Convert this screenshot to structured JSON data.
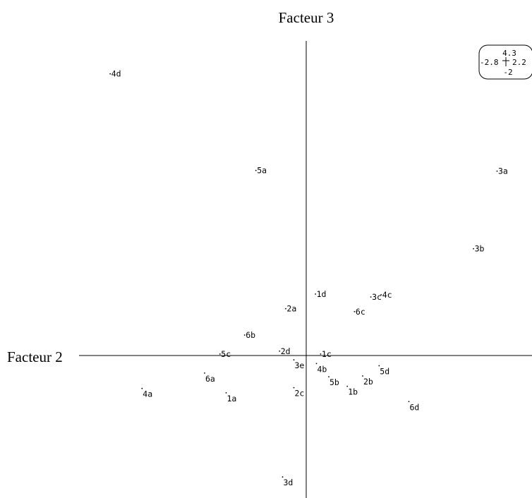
{
  "chart_data": {
    "type": "scatter",
    "xlabel": "Facteur 2",
    "ylabel": "Facteur 3",
    "xlim": [
      -2.8,
      2.2
    ],
    "ylim": [
      -2,
      4.3
    ],
    "grid": false,
    "scale_box": {
      "top": "4.3",
      "left": "-2.8",
      "right": "2.2",
      "bottom": "-2"
    },
    "points": [
      {
        "label": "4d",
        "x": -1.91,
        "y": 3.85,
        "label_side": "right"
      },
      {
        "label": "5a",
        "x": -0.49,
        "y": 2.53,
        "label_side": "right"
      },
      {
        "label": "3a",
        "x": 1.86,
        "y": 2.52,
        "label_side": "right"
      },
      {
        "label": "3b",
        "x": 1.63,
        "y": 1.46,
        "label_side": "right"
      },
      {
        "label": "1d",
        "x": 0.09,
        "y": 0.84,
        "label_side": "right"
      },
      {
        "label": "3c",
        "x": 0.63,
        "y": 0.8,
        "label_side": "right"
      },
      {
        "label": "4c",
        "x": 0.73,
        "y": 0.83,
        "label_side": "right"
      },
      {
        "label": "2a",
        "x": -0.2,
        "y": 0.64,
        "label_side": "right"
      },
      {
        "label": "6c",
        "x": 0.47,
        "y": 0.6,
        "label_side": "right"
      },
      {
        "label": "6b",
        "x": -0.6,
        "y": 0.28,
        "label_side": "right"
      },
      {
        "label": "5c",
        "x": -0.84,
        "y": 0.02,
        "label_side": "right"
      },
      {
        "label": "2d",
        "x": -0.26,
        "y": 0.06,
        "label_side": "right"
      },
      {
        "label": "1c",
        "x": 0.14,
        "y": 0.02,
        "label_side": "right"
      },
      {
        "label": "3e",
        "x": -0.12,
        "y": -0.06,
        "label_side": "below"
      },
      {
        "label": "4b",
        "x": 0.1,
        "y": -0.11,
        "label_side": "below"
      },
      {
        "label": "5d",
        "x": 0.71,
        "y": -0.14,
        "label_side": "below"
      },
      {
        "label": "6a",
        "x": -0.99,
        "y": -0.24,
        "label_side": "below"
      },
      {
        "label": "5b",
        "x": 0.22,
        "y": -0.29,
        "label_side": "below"
      },
      {
        "label": "2b",
        "x": 0.55,
        "y": -0.28,
        "label_side": "below"
      },
      {
        "label": "4a",
        "x": -1.6,
        "y": -0.45,
        "label_side": "below"
      },
      {
        "label": "2c",
        "x": -0.12,
        "y": -0.44,
        "label_side": "below"
      },
      {
        "label": "1b",
        "x": 0.4,
        "y": -0.42,
        "label_side": "below"
      },
      {
        "label": "1a",
        "x": -0.78,
        "y": -0.51,
        "label_side": "below"
      },
      {
        "label": "6d",
        "x": 1.0,
        "y": -0.63,
        "label_side": "below"
      },
      {
        "label": "3d",
        "x": -0.23,
        "y": -1.66,
        "label_side": "below"
      }
    ]
  }
}
